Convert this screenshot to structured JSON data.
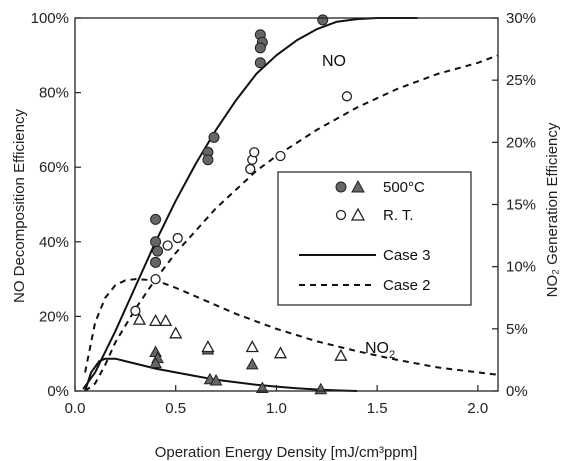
{
  "chart_data": {
    "type": "scatter",
    "xlabel": "Operation Energy Density [mJ/cm³ppm]",
    "ylabel": "NO Decomposition Efficiency",
    "ylabel_right": "NO₂ Generation Efficiency",
    "xlim": [
      0.0,
      2.1
    ],
    "ylim": [
      0,
      100
    ],
    "ylim_right": [
      0,
      30
    ],
    "x_ticks": [
      0.0,
      0.5,
      1.0,
      1.5,
      2.0
    ],
    "x_tick_labels": [
      "0.0",
      "0.5",
      "1.0",
      "1.5",
      "2.0"
    ],
    "y_ticks": [
      0,
      20,
      40,
      60,
      80,
      100
    ],
    "y_tick_labels": [
      "0%",
      "20%",
      "40%",
      "60%",
      "80%",
      "100%"
    ],
    "y2_ticks": [
      0,
      5,
      10,
      15,
      20,
      25,
      30
    ],
    "y2_tick_labels": [
      "0%",
      "5%",
      "10%",
      "15%",
      "20%",
      "25%",
      "30%"
    ],
    "grid": false,
    "legend_position": "center-right",
    "annotations": [
      {
        "text": "NO",
        "x": 1.42,
        "y": 89
      },
      {
        "text": "NO",
        "sub": "2",
        "x": 1.35,
        "y": 11
      }
    ],
    "legend": [
      {
        "label": "500°C",
        "markers": [
          "filled-circle",
          "filled-triangle"
        ]
      },
      {
        "label": "R. T.",
        "markers": [
          "open-circle",
          "open-triangle"
        ]
      },
      {
        "label": "Case 3",
        "line": "solid"
      },
      {
        "label": "Case 2",
        "line": "dashed"
      }
    ],
    "series": [
      {
        "name": "500°C",
        "marker": "filled-circle",
        "axis": "left",
        "points": [
          [
            0.4,
            46
          ],
          [
            0.4,
            40
          ],
          [
            0.41,
            37.5
          ],
          [
            0.4,
            34.5
          ],
          [
            0.66,
            64
          ],
          [
            0.66,
            62
          ],
          [
            0.69,
            68
          ],
          [
            0.92,
            95.5
          ],
          [
            0.93,
            93.5
          ],
          [
            0.92,
            92
          ],
          [
            0.92,
            88
          ],
          [
            1.23,
            99.5
          ]
        ]
      },
      {
        "name": "R. T.",
        "marker": "open-circle",
        "axis": "left",
        "points": [
          [
            0.3,
            21.5
          ],
          [
            0.4,
            30
          ],
          [
            0.46,
            39
          ],
          [
            0.51,
            41
          ],
          [
            0.87,
            59.5
          ],
          [
            0.88,
            62
          ],
          [
            0.89,
            64
          ],
          [
            1.02,
            63
          ],
          [
            1.35,
            79
          ]
        ]
      },
      {
        "name": "500°C",
        "marker": "filled-triangle",
        "axis": "right",
        "points": [
          [
            0.4,
            3.1
          ],
          [
            0.41,
            2.6
          ],
          [
            0.4,
            2.2
          ],
          [
            0.66,
            3.3
          ],
          [
            0.67,
            0.9
          ],
          [
            0.7,
            0.8
          ],
          [
            0.88,
            2.1
          ],
          [
            0.93,
            0.2
          ],
          [
            1.22,
            0.1
          ]
        ]
      },
      {
        "name": "R. T.",
        "marker": "open-triangle",
        "axis": "right",
        "points": [
          [
            0.32,
            5.7
          ],
          [
            0.4,
            5.6
          ],
          [
            0.45,
            5.6
          ],
          [
            0.5,
            4.6
          ],
          [
            0.66,
            3.5
          ],
          [
            0.88,
            3.5
          ],
          [
            1.02,
            3.0
          ],
          [
            1.32,
            2.8
          ]
        ]
      },
      {
        "name": "Case 3",
        "line": "solid",
        "axis": "left",
        "x": [
          0.04,
          0.1,
          0.2,
          0.3,
          0.4,
          0.5,
          0.6,
          0.7,
          0.8,
          0.9,
          1.0,
          1.1,
          1.2,
          1.3,
          1.4,
          1.5,
          1.6,
          1.7
        ],
        "y": [
          0.5,
          5,
          16,
          28,
          40,
          51,
          61,
          70,
          78,
          85,
          90,
          94,
          97,
          99,
          99.7,
          100,
          100,
          100
        ]
      },
      {
        "name": "Case 2",
        "line": "dashed",
        "axis": "left",
        "x": [
          0.05,
          0.1,
          0.15,
          0.2,
          0.3,
          0.4,
          0.5,
          0.6,
          0.7,
          0.8,
          0.9,
          1.0,
          1.2,
          1.4,
          1.6,
          1.8,
          2.0,
          2.1
        ],
        "y": [
          0,
          2,
          7,
          13,
          22,
          30,
          37,
          43,
          49,
          54,
          59,
          63,
          70,
          76,
          81,
          85,
          88,
          90
        ]
      },
      {
        "name": "Case 3",
        "line": "solid",
        "axis": "right",
        "x": [
          0.05,
          0.08,
          0.12,
          0.15,
          0.2,
          0.3,
          0.4,
          0.5,
          0.6,
          0.7,
          0.8,
          0.9,
          1.0,
          1.1,
          1.2,
          1.3,
          1.4
        ],
        "y": [
          0,
          1.5,
          2.4,
          2.6,
          2.6,
          2.2,
          1.8,
          1.5,
          1.2,
          0.9,
          0.7,
          0.5,
          0.35,
          0.22,
          0.12,
          0.05,
          0
        ]
      },
      {
        "name": "Case 2",
        "line": "dashed",
        "axis": "right",
        "x": [
          0.05,
          0.1,
          0.15,
          0.2,
          0.25,
          0.3,
          0.4,
          0.5,
          0.6,
          0.7,
          0.8,
          0.9,
          1.0,
          1.2,
          1.4,
          1.6,
          1.8,
          2.0,
          2.1
        ],
        "y": [
          1.5,
          5.5,
          7.5,
          8.5,
          8.9,
          9.0,
          8.9,
          8.3,
          7.6,
          6.9,
          6.2,
          5.6,
          5.0,
          4.0,
          3.2,
          2.5,
          1.9,
          1.5,
          1.3
        ]
      }
    ]
  }
}
